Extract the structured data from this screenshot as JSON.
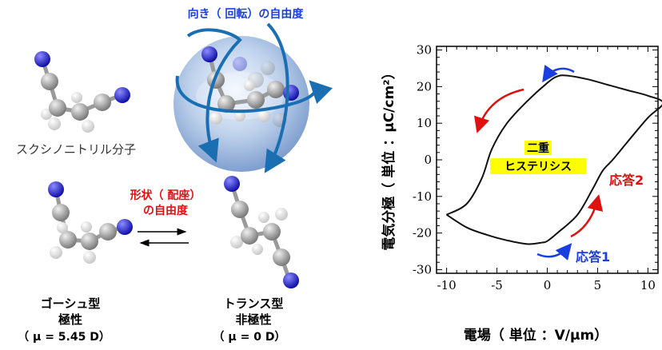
{
  "molecules": {
    "rotation_label": "向き（ 回転）の自由度",
    "molecule_name": "スクシノニトリル分子",
    "conformation_label_line1": "形状（ 配座）",
    "conformation_label_line2": "の自由度",
    "gauche": {
      "name": "ゴーシュ型",
      "polarity": "極性",
      "dipole": "（ μ = 5.45 D）"
    },
    "trans": {
      "name": "トランス型",
      "polarity": "非極性",
      "dipole": "（ μ = 0 D）"
    }
  },
  "colors": {
    "nitrogen": "#2222cc",
    "carbon": "#9a9a9a",
    "hydrogen": "#f4f4f4",
    "rotation_arrow": "#1a6fb3",
    "red_annotation": "#e01010",
    "blue_annotation": "#1a3fe0",
    "highlight": "#ffff00"
  },
  "chart_data": {
    "type": "line",
    "title": "",
    "xlabel": "電場（ 単位 ：V/μm）",
    "ylabel": "電気分極（ 単位 ：μC/cm²）",
    "xlim": [
      -11,
      11
    ],
    "ylim": [
      -31,
      31
    ],
    "xticks": [
      -10,
      -5,
      0,
      5,
      10
    ],
    "xtick_labels": [
      "-10",
      "-5",
      "0",
      "5",
      "10"
    ],
    "yticks": [
      -30,
      -20,
      -10,
      0,
      10,
      20,
      30
    ],
    "ytick_labels": [
      "-30",
      "-20",
      "-10",
      "0",
      "10",
      "20",
      "30"
    ],
    "grid": false,
    "series": [
      {
        "points": [
          [
            -10,
            -15
          ],
          [
            -8,
            -12
          ],
          [
            -6.5,
            -5
          ],
          [
            -5.5,
            3
          ],
          [
            -4,
            10
          ],
          [
            -2,
            16
          ],
          [
            0,
            21
          ],
          [
            1,
            22.8
          ],
          [
            2,
            23
          ],
          [
            4,
            22
          ],
          [
            6,
            20.5
          ],
          [
            8,
            19
          ],
          [
            10,
            17.5
          ],
          [
            11.5,
            15.5
          ],
          [
            10,
            11.5
          ],
          [
            8,
            5
          ],
          [
            6.5,
            0
          ],
          [
            5.5,
            -3
          ],
          [
            4.5,
            -8
          ],
          [
            3,
            -15
          ],
          [
            1,
            -20
          ],
          [
            0,
            -22.2
          ],
          [
            -0.5,
            -22.6
          ],
          [
            -2,
            -23
          ],
          [
            -4,
            -22
          ],
          [
            -6,
            -20.5
          ],
          [
            -8,
            -18.5
          ],
          [
            -10,
            -15
          ]
        ]
      }
    ],
    "annotations": {
      "center_line1": "二重",
      "center_line2": "ヒステリシス",
      "response1": "応答1",
      "response2": "応答2"
    }
  }
}
